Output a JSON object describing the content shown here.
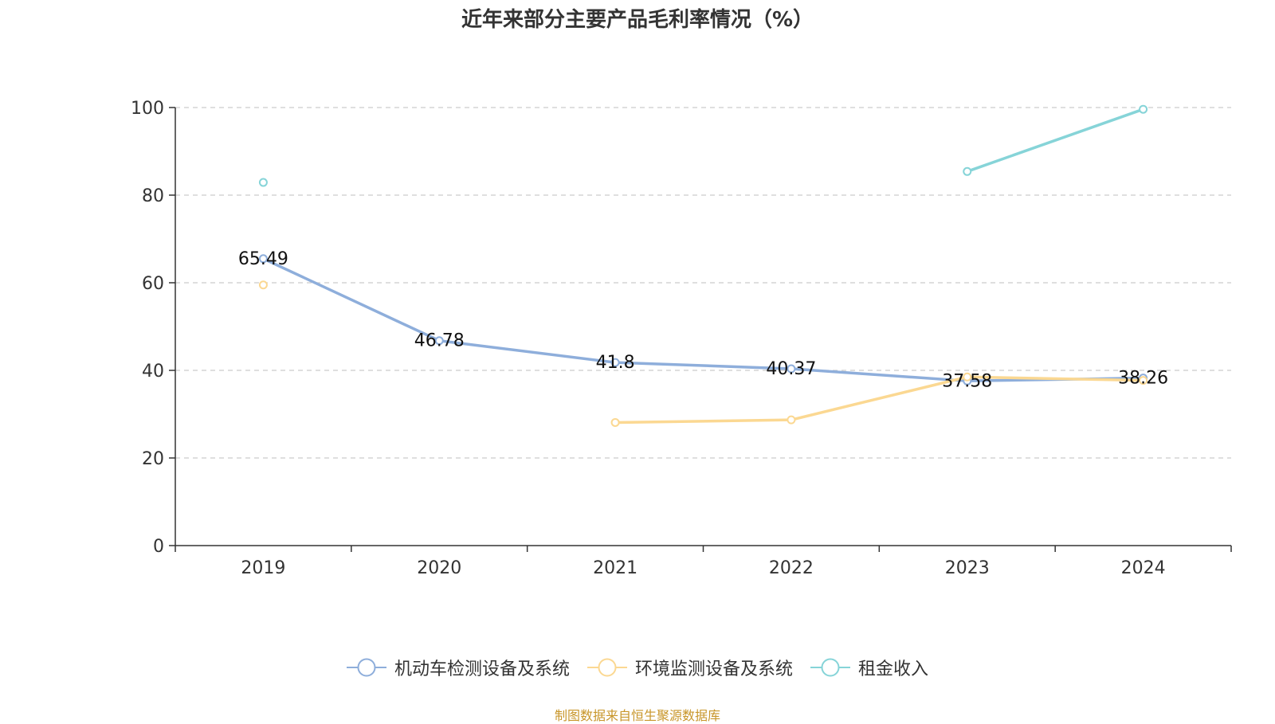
{
  "chart_data": {
    "type": "line",
    "title": "近年来部分主要产品毛利率情况（%）",
    "categories": [
      "2019",
      "2020",
      "2021",
      "2022",
      "2023",
      "2024"
    ],
    "ylim": [
      0,
      100
    ],
    "yticks": [
      0,
      20,
      40,
      60,
      80,
      100
    ],
    "grid": true,
    "legend_position": "bottom",
    "series": [
      {
        "name": "机动车检测设备及系统",
        "color": "#8eaedb",
        "values": [
          65.49,
          46.78,
          41.8,
          40.37,
          37.58,
          38.26
        ],
        "labels": [
          "65.49",
          "46.78",
          "41.8",
          "40.37",
          "37.58",
          "38.26"
        ]
      },
      {
        "name": "环境监测设备及系统",
        "color": "#fbd892",
        "values": [
          59.5,
          null,
          28.1,
          28.7,
          38.5,
          37.7
        ]
      },
      {
        "name": "租金收入",
        "color": "#86d4d8",
        "values": [
          82.9,
          null,
          null,
          null,
          85.4,
          99.6
        ]
      }
    ]
  },
  "source": "制图数据来自恒生聚源数据库"
}
